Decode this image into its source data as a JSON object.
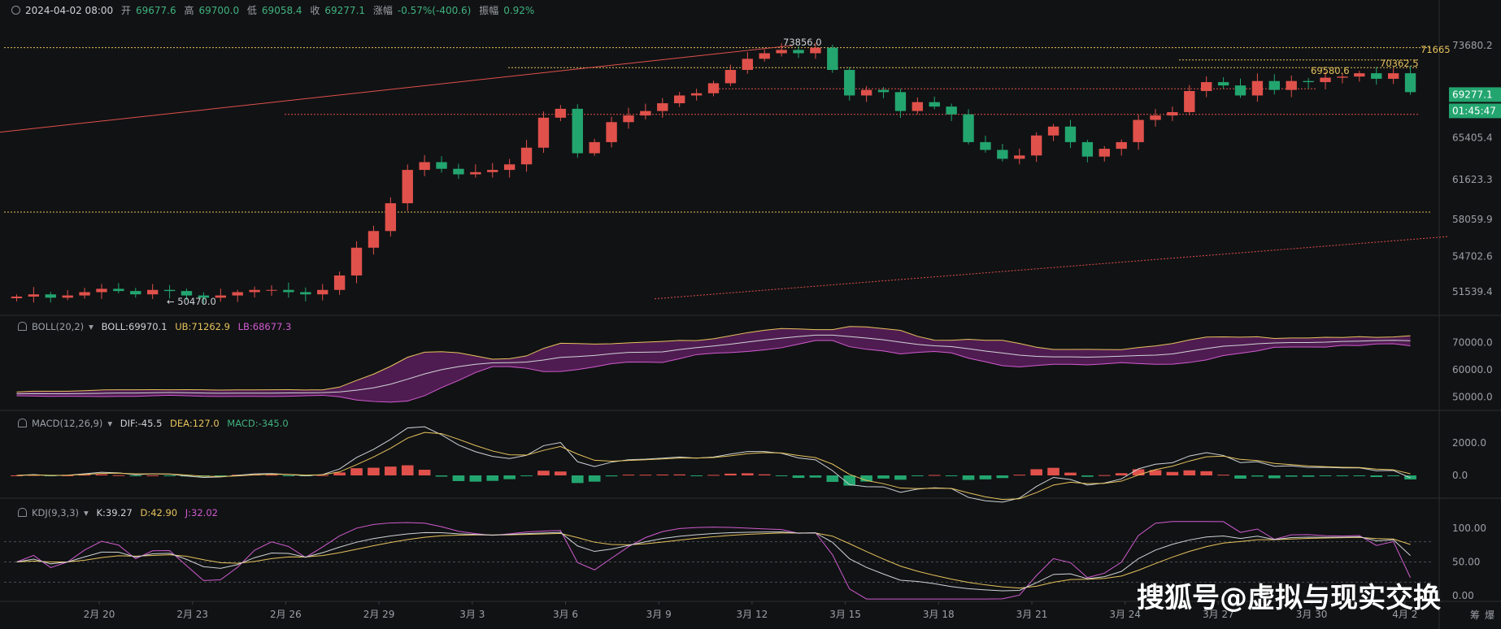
{
  "header": {
    "date": "2024-04-02 08:00",
    "open_label": "开",
    "open": "69677.6",
    "high_label": "高",
    "high": "69700.0",
    "low_label": "低",
    "low": "69058.4",
    "close_label": "收",
    "close": "69277.1",
    "change_label": "涨幅",
    "change": "-0.57%(-400.6)",
    "amp_label": "振幅",
    "amp": "0.92%"
  },
  "boll_label": {
    "name": "BOLL(20,2)",
    "boll": "BOLL:69970.1",
    "ub": "UB:71262.9",
    "lb": "LB:68677.3"
  },
  "macd_label": {
    "name": "MACD(12,26,9)",
    "dif": "DIF:-45.5",
    "dea": "DEA:127.0",
    "macd": "MACD:-345.0"
  },
  "kdj_label": {
    "name": "KDJ(9,3,3)",
    "k": "K:39.27",
    "d": "D:42.90",
    "j": "J:32.02"
  },
  "corner_buttons": {
    "a": "筹",
    "b": "爆"
  },
  "watermark": "搜狐号@虚拟与现实交换",
  "colors": {
    "up": "#e0514b",
    "down": "#23a56f",
    "bg": "#111214",
    "yellow": "#e6c35c",
    "pink": "#d05ccf"
  },
  "chart_data": [
    {
      "type": "candlestick",
      "x": [
        "2月 20",
        "2月 23",
        "2月 26",
        "2月 29",
        "3月 3",
        "3月 6",
        "3月 9",
        "3月 12",
        "3月 15",
        "3月 18",
        "3月 21",
        "3月 24",
        "3月 27",
        "3月 30",
        "4月 2"
      ],
      "y_ticks": [
        "73680.2",
        "65405.4",
        "61623.3",
        "58059.9",
        "54702.6",
        "51539.4"
      ],
      "current_price": "69277.1",
      "countdown": "01:45:47",
      "annotations": {
        "high": "73856.0",
        "low": "50470.0",
        "level_a": "71665",
        "level_b": "70362.5",
        "level_c": "69580.6"
      },
      "close_series": [
        51100,
        51300,
        51000,
        51200,
        51500,
        51800,
        51600,
        51300,
        51700,
        51600,
        51200,
        51000,
        51200,
        51500,
        51700,
        51700,
        51500,
        51300,
        51700,
        53000,
        55500,
        57000,
        59500,
        62500,
        63200,
        62600,
        62100,
        62300,
        62500,
        63000,
        64500,
        67200,
        68000,
        64000,
        65000,
        66800,
        67400,
        67800,
        68500,
        69200,
        69400,
        70300,
        71500,
        72500,
        73000,
        73300,
        73000,
        73500,
        71500,
        69200,
        69700,
        69500,
        67800,
        68600,
        68200,
        67500,
        65000,
        64300,
        63500,
        63800,
        65600,
        66400,
        65000,
        63700,
        64400,
        65000,
        67000,
        67400,
        67700,
        69600,
        70400,
        70100,
        69200,
        70500,
        69700,
        70500,
        70400,
        70800,
        70900,
        71200,
        70700,
        71200,
        69500
      ]
    },
    {
      "type": "line",
      "series": [
        {
          "name": "BOLL"
        },
        {
          "name": "UB"
        },
        {
          "name": "LB"
        }
      ],
      "y_ticks": [
        "70000.0",
        "60000.0",
        "50000.0"
      ]
    },
    {
      "type": "bar",
      "series": [
        {
          "name": "DIF"
        },
        {
          "name": "DEA"
        },
        {
          "name": "MACD"
        }
      ],
      "y_ticks": [
        "2000.0",
        "0.0"
      ]
    },
    {
      "type": "line",
      "series": [
        {
          "name": "K"
        },
        {
          "name": "D"
        },
        {
          "name": "J"
        }
      ],
      "y_ticks": [
        "100.00",
        "50.00",
        "0.00"
      ]
    }
  ]
}
